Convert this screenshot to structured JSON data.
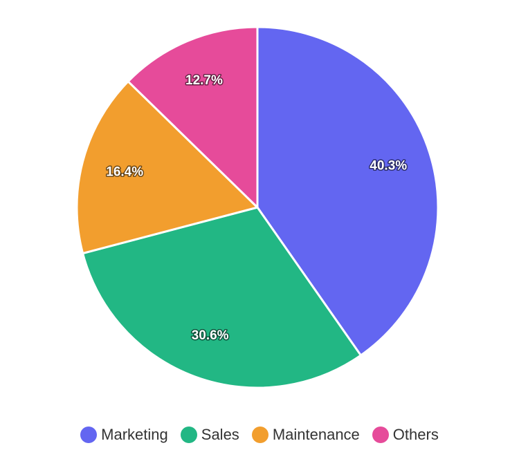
{
  "chart_data": {
    "type": "pie",
    "title": "",
    "categories": [
      "Marketing",
      "Sales",
      "Maintenance",
      "Others"
    ],
    "values": [
      40.3,
      30.6,
      16.4,
      12.7
    ],
    "value_labels": [
      "40.3%",
      "30.6%",
      "16.4%",
      "12.7%"
    ],
    "colors": [
      "#6366f1",
      "#22b784",
      "#f29e2e",
      "#e64b9a"
    ],
    "start_angle_deg": 0,
    "direction": "clockwise",
    "legend": {
      "placement": "bottom-center",
      "marker": "circle"
    }
  }
}
